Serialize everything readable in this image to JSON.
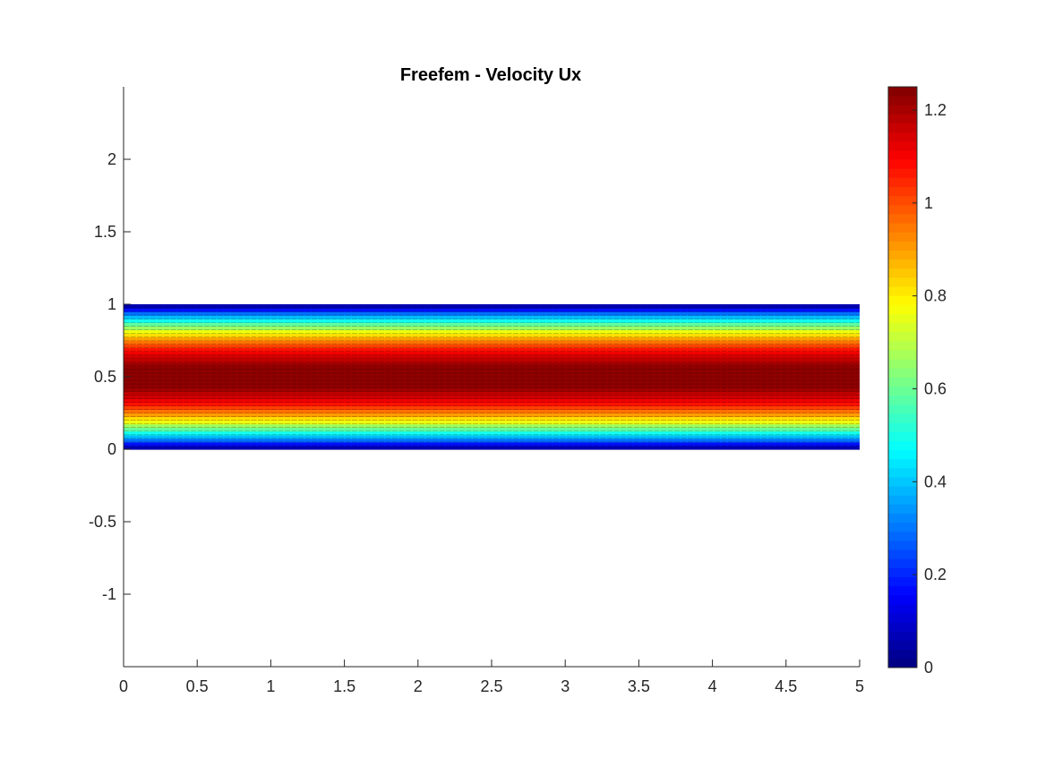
{
  "chart_data": {
    "type": "heatmap",
    "title": "Freefem - Velocity Ux",
    "xlabel": "",
    "ylabel": "",
    "xlim": [
      0,
      5
    ],
    "ylim": [
      -1.5,
      2.5
    ],
    "xticks": [
      0,
      0.5,
      1,
      1.5,
      2,
      2.5,
      3,
      3.5,
      4,
      4.5,
      5
    ],
    "xtick_labels": [
      "0",
      "0.5",
      "1",
      "1.5",
      "2",
      "2.5",
      "3",
      "3.5",
      "4",
      "4.5",
      "5"
    ],
    "yticks": [
      -1,
      -0.5,
      0,
      0.5,
      1,
      1.5,
      2
    ],
    "ytick_labels": [
      "-1",
      "-0.5",
      "0",
      "0.5",
      "1",
      "1.5",
      "2"
    ],
    "field": {
      "domain_x": [
        0,
        5
      ],
      "domain_y": [
        0,
        1
      ],
      "profile": "parabolic",
      "max_value": 1.25,
      "contour_levels": 40
    },
    "colorbar": {
      "colormap": "jet",
      "clim": [
        0,
        1.25
      ],
      "ticks": [
        0,
        0.2,
        0.4,
        0.6,
        0.8,
        1,
        1.2
      ],
      "tick_labels": [
        "0",
        "0.2",
        "0.4",
        "0.6",
        "0.8",
        "1",
        "1.2"
      ],
      "levels": 64
    },
    "grid": false,
    "legend": "none"
  }
}
